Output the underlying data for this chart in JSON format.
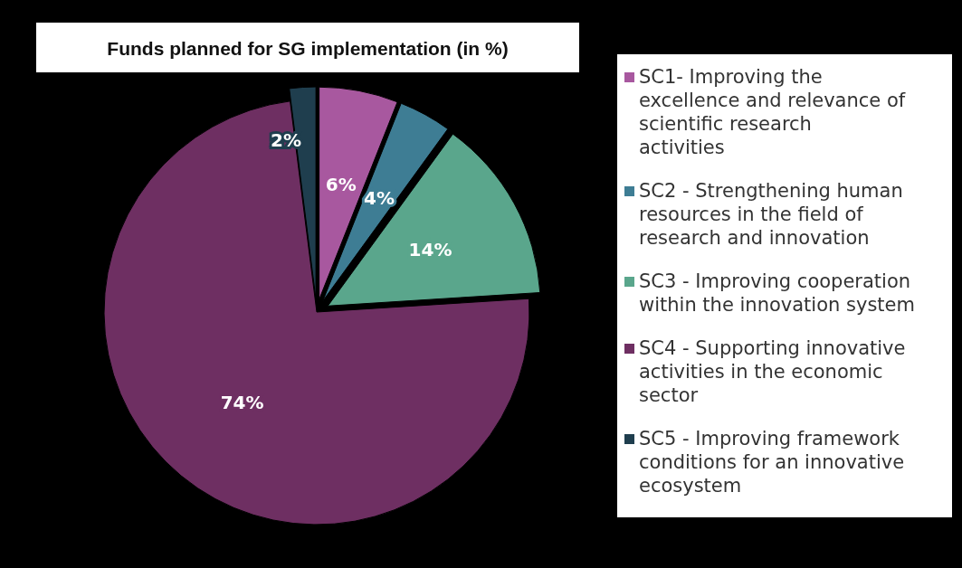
{
  "chart_data": {
    "type": "pie",
    "title": "Funds planned for SG implementation (in %)",
    "categories": [
      "SC1-  Improving the excellence and relevance of scientific research activities",
      "SC2 - Strengthening human resources in the field of research and innovation",
      "SC3 - Improving cooperation within the innovation system",
      "SC4 - Supporting innovative activities in the economic sector",
      "SC5 - Improving framework conditions for an innovative ecosystem"
    ],
    "values": [
      6,
      4,
      14,
      74,
      2
    ],
    "value_labels": [
      "6%",
      "4%",
      "14%",
      "74%",
      "2%"
    ],
    "colors": [
      "#a8589f",
      "#3e7d94",
      "#5aa68c",
      "#6e2f62",
      "#1f3e4e"
    ],
    "legend": "right"
  }
}
